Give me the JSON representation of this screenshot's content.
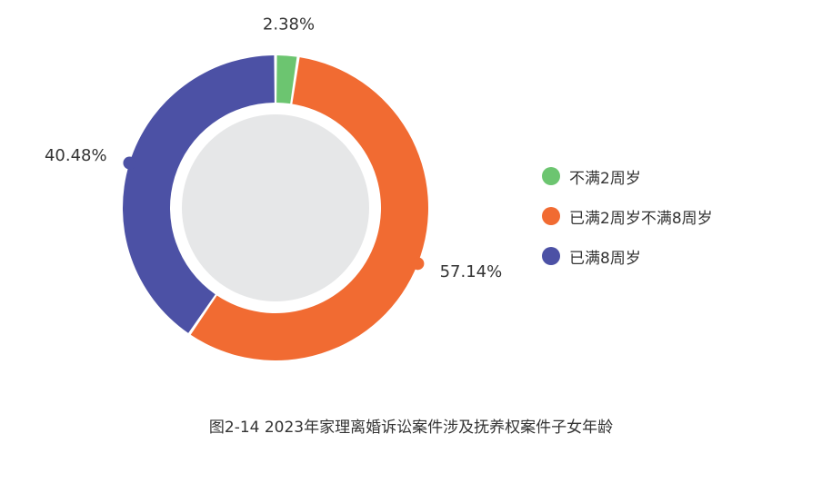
{
  "chart_data": {
    "type": "pie",
    "title": "图2-14 2023年家理离婚诉讼案件涉及抚养权案件子女年龄",
    "categories": [
      "不满2周岁",
      "已满2周岁不满8周岁",
      "已满8周岁"
    ],
    "values": [
      2.38,
      57.14,
      40.48
    ],
    "data_labels": [
      "2.38%",
      "57.14%",
      "40.48%"
    ],
    "colors": [
      "#6cc570",
      "#f16b32",
      "#4c51a5"
    ],
    "center_color": "#e6e7e8",
    "legend_position": "right"
  }
}
